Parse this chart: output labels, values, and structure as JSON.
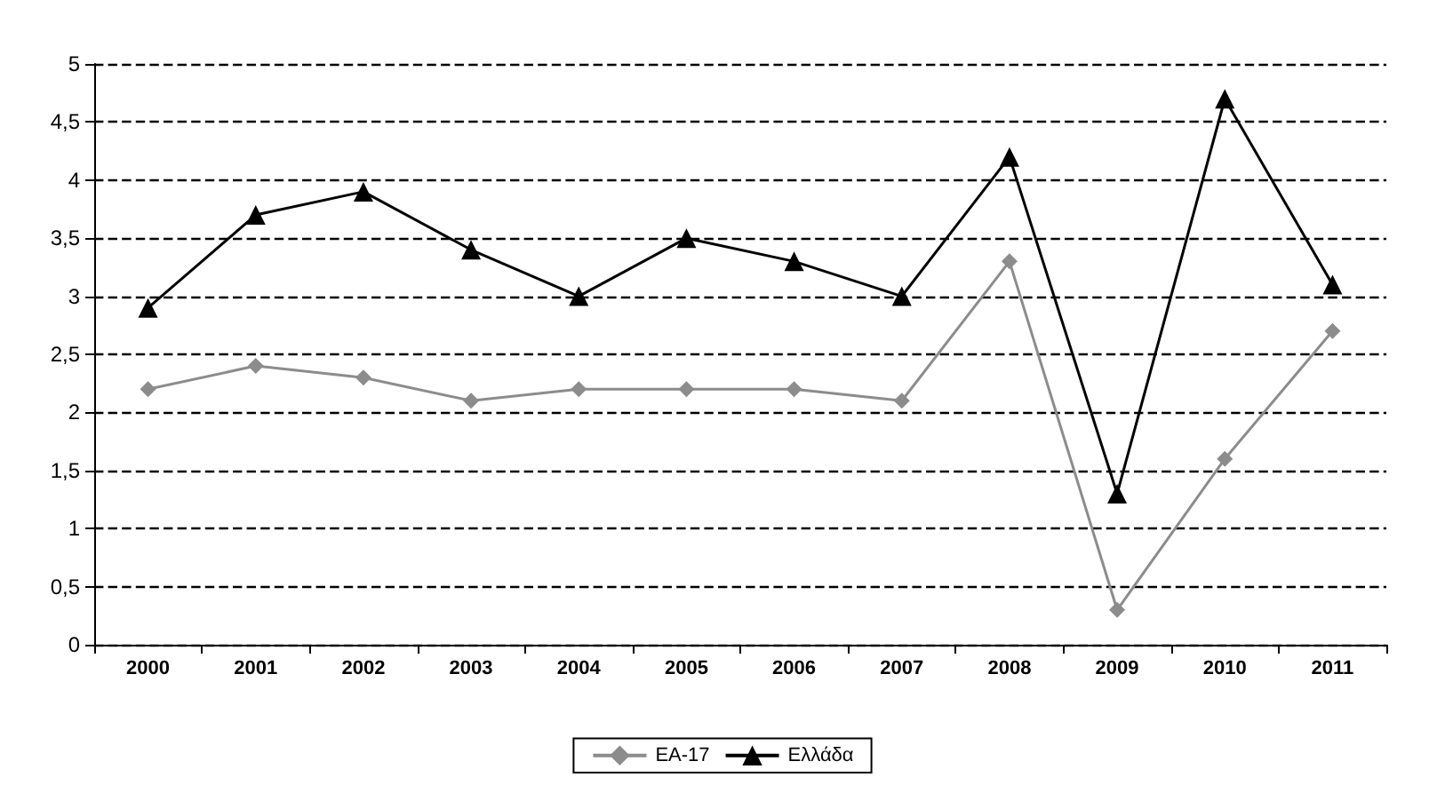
{
  "chart_data": {
    "type": "line",
    "categories": [
      "2000",
      "2001",
      "2002",
      "2003",
      "2004",
      "2005",
      "2006",
      "2007",
      "2008",
      "2009",
      "2010",
      "2011"
    ],
    "series": [
      {
        "name": "ΕΑ-17",
        "color": "#8c8c8c",
        "marker": "diamond",
        "values": [
          2.2,
          2.4,
          2.3,
          2.1,
          2.2,
          2.2,
          2.2,
          2.1,
          3.3,
          0.3,
          1.6,
          2.7
        ]
      },
      {
        "name": "Ελλάδα",
        "color": "#000000",
        "marker": "triangle",
        "values": [
          2.9,
          3.7,
          3.9,
          3.4,
          3.0,
          3.5,
          3.3,
          3.0,
          4.2,
          1.3,
          4.7,
          3.1
        ]
      }
    ],
    "ylim": [
      0,
      5
    ],
    "yticks": [
      0,
      {
        "value": 0.5,
        "label": "0,5"
      },
      1,
      {
        "value": 1.5,
        "label": "1,5"
      },
      2,
      {
        "value": 2.5,
        "label": "2,5"
      },
      3,
      {
        "value": 3.5,
        "label": "3,5"
      },
      4,
      {
        "value": 4.5,
        "label": "4,5"
      },
      5
    ],
    "grid": "y",
    "legend": "bottom",
    "line_style": "solid"
  }
}
